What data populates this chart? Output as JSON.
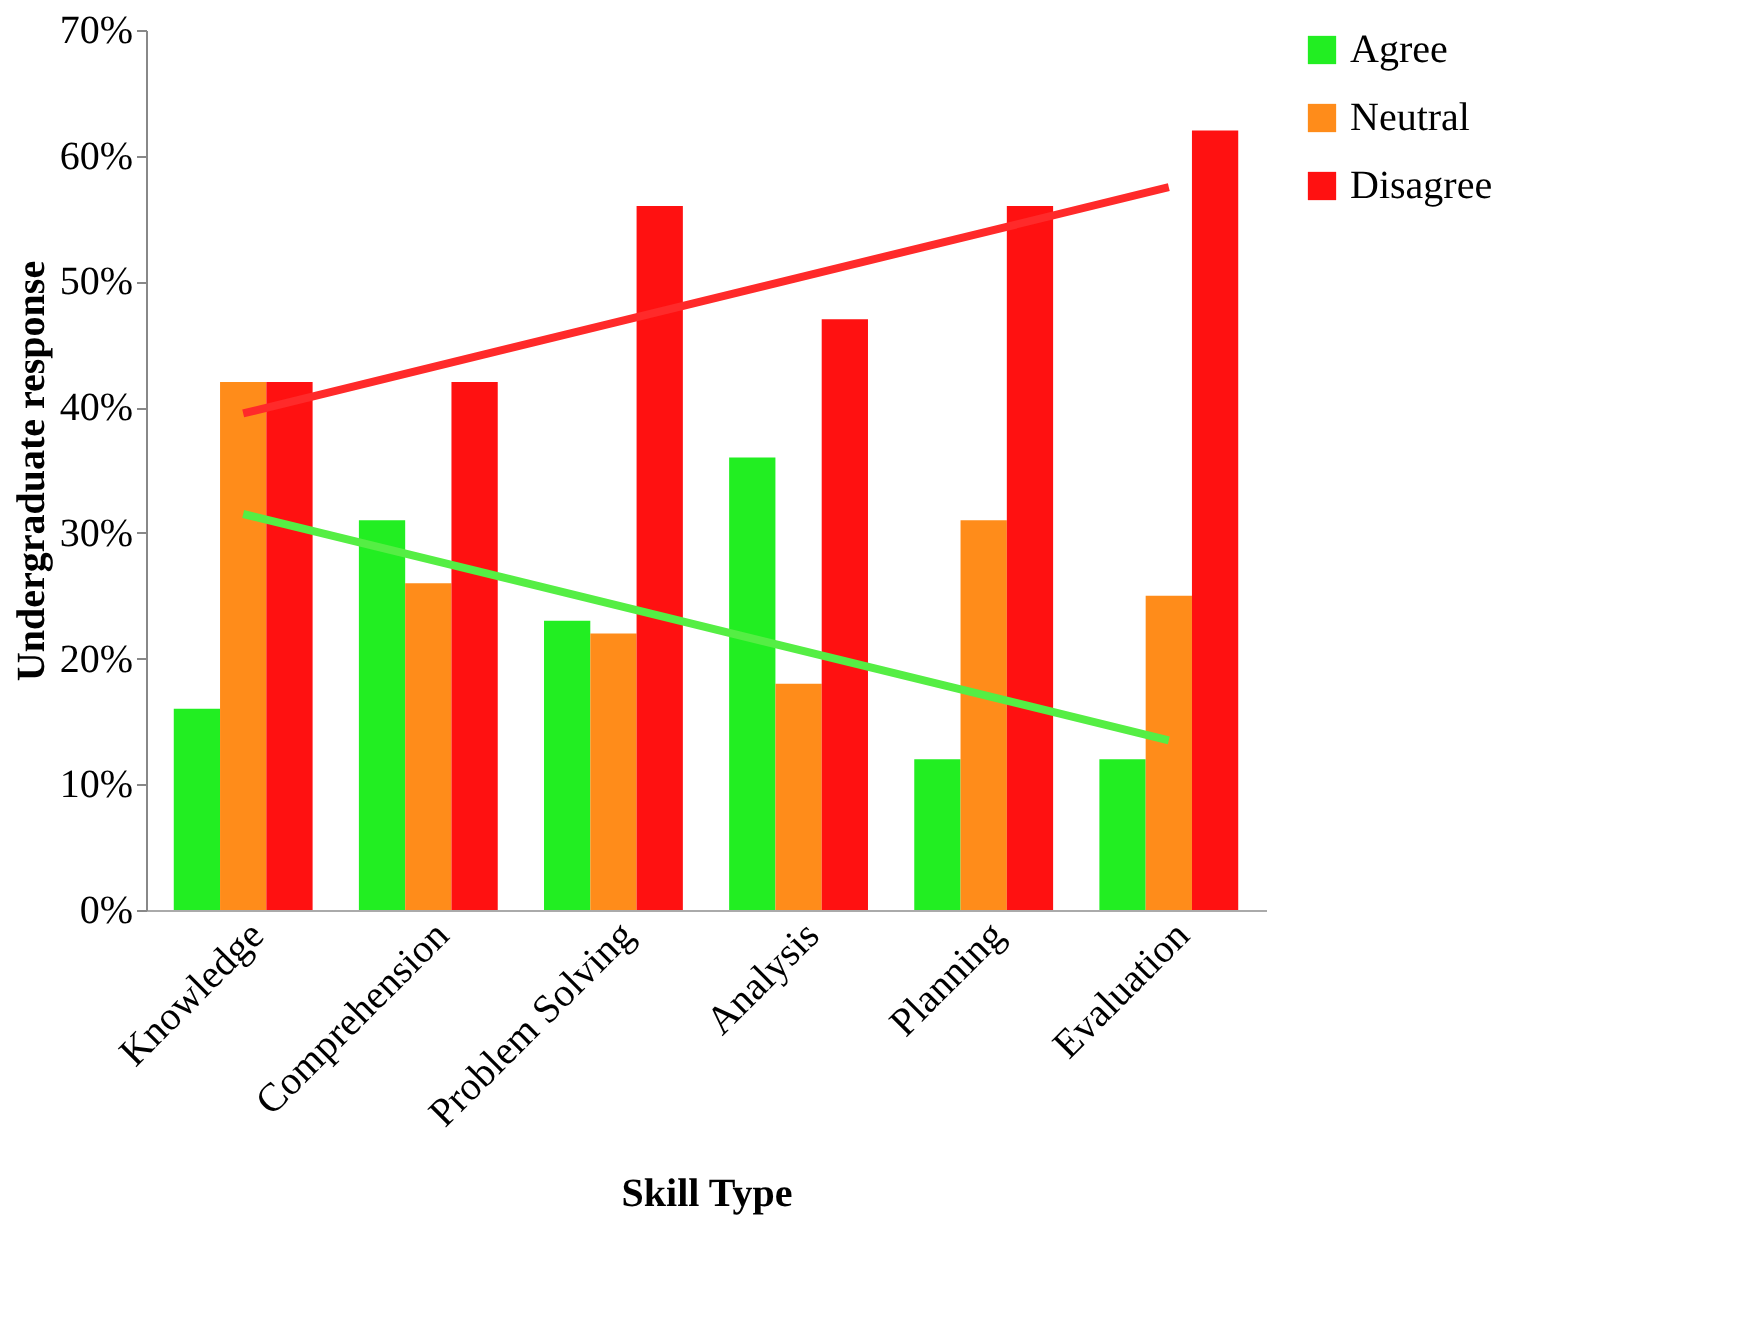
{
  "chart_data": {
    "type": "bar",
    "xlabel": "Skill Type",
    "ylabel": "Undergraduate response",
    "categories": [
      "Knowledge",
      "Comprehension",
      "Problem Solving",
      "Analysis",
      "Planning",
      "Evaluation"
    ],
    "series": [
      {
        "name": "Agree",
        "color": "#22ee22",
        "values": [
          16,
          31,
          23,
          36,
          12,
          12
        ]
      },
      {
        "name": "Neutral",
        "color": "#ff8c1a",
        "values": [
          42,
          26,
          22,
          18,
          31,
          25
        ]
      },
      {
        "name": "Disagree",
        "color": "#ff1111",
        "values": [
          42,
          42,
          56,
          47,
          56,
          62
        ]
      },
      {
        "type": "line",
        "color": "#ff2a2a",
        "x": [
          "Knowledge",
          "Evaluation"
        ],
        "values": [
          39.5,
          57.5
        ]
      },
      {
        "type": "line",
        "color": "#55ee44",
        "x": [
          "Knowledge",
          "Evaluation"
        ],
        "values": [
          31.5,
          13.5
        ]
      }
    ],
    "ylim": [
      0,
      70
    ],
    "yticks": [
      {
        "value": 0,
        "label": "0%"
      },
      {
        "value": 10,
        "label": "10%"
      },
      {
        "value": 20,
        "label": "20%"
      },
      {
        "value": 30,
        "label": "30%"
      },
      {
        "value": 40,
        "label": "40%"
      },
      {
        "value": 50,
        "label": "50%"
      },
      {
        "value": 60,
        "label": "60%"
      },
      {
        "value": 70,
        "label": "70%"
      }
    ],
    "grid": false,
    "legend": "right"
  }
}
